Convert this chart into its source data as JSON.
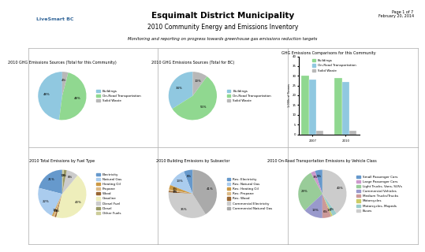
{
  "title_main": "Esquimalt District Municipality",
  "title_sub": "2010 Community Energy and Emissions Inventory",
  "title_sub2": "Monitoring and reporting on progress towards greenhouse gas emissions reduction targets",
  "page_info": "Page 1 of 7\nFebruary 20, 2014",
  "chart1_title": "2010 GHG Emissions Sources (Total for this Community)",
  "chart1_labels": [
    "Buildings",
    "On-Road Transportation",
    "Solid Waste"
  ],
  "chart1_values": [
    48,
    48,
    4
  ],
  "chart1_colors": [
    "#90c8e0",
    "#90d890",
    "#b8b8b8"
  ],
  "chart2_title": "2010 GHG Emissions Sources (Total for BC)",
  "chart2_labels": [
    "Buildings",
    "On-Road Transportation",
    "Solid Waste"
  ],
  "chart2_values": [
    34,
    56,
    10
  ],
  "chart2_colors": [
    "#90c8e0",
    "#90d890",
    "#b8b8b8"
  ],
  "chart3_title": "GHG Emissions Comparisons for this Community",
  "chart3_years": [
    "2007",
    "2010"
  ],
  "chart3_categories": [
    "Buildings",
    "On-Road Transportation",
    "Solid Waste"
  ],
  "chart3_values": [
    [
      30,
      29
    ],
    [
      28,
      27
    ],
    [
      2,
      2
    ]
  ],
  "chart3_colors": [
    "#90d890",
    "#90c8e0",
    "#b8b8b8"
  ],
  "chart3_ylabel": "1,000s of Tonnes",
  "chart3_ylim": [
    0,
    40
  ],
  "chart4_title": "2010 Total Emissions by Fuel Type",
  "chart4_labels": [
    "Electricity",
    "Natural Gas",
    "Heating Oil",
    "Propane",
    "Wood",
    "Gasoline",
    "Diesel Fuel",
    "Diesel",
    "Other Fuels"
  ],
  "chart4_values": [
    21,
    22,
    1,
    1,
    1,
    43,
    8,
    2,
    1
  ],
  "chart4_colors": [
    "#6699cc",
    "#aaccee",
    "#cc9944",
    "#ddbb88",
    "#996633",
    "#eeeebb",
    "#cccccc",
    "#999966",
    "#cccc99"
  ],
  "chart5_title": "2010 Building Emissions by Subsector",
  "chart5_labels": [
    "Res: Electricity",
    "Res: Natural Gas",
    "Res: Heating Oil",
    "Res: Propane",
    "Res: Wood",
    "Commercial Electricity",
    "Commercial Natural Gas"
  ],
  "chart5_values": [
    6,
    13,
    3,
    1,
    1,
    35,
    41
  ],
  "chart5_colors": [
    "#6699cc",
    "#aaccee",
    "#cc9944",
    "#ddbb88",
    "#996633",
    "#cccccc",
    "#aaaaaa"
  ],
  "chart6_title": "2010 On-Road Transportation Emissions by Vehicle Class",
  "chart6_labels": [
    "Small Passenger Cars",
    "Large Passenger Cars",
    "Light Trucks, Vans, SUVs",
    "Commercial Vehicles",
    "Medium Trucks/Trucks",
    "Motorcycles",
    "Motorcycles, Mopeds",
    "Buses"
  ],
  "chart6_values": [
    5,
    3,
    29,
    13,
    6,
    1,
    3,
    40
  ],
  "chart6_colors": [
    "#6699cc",
    "#cc99cc",
    "#99cc99",
    "#9999cc",
    "#cc9999",
    "#cccc66",
    "#99cccc",
    "#cccccc"
  ]
}
